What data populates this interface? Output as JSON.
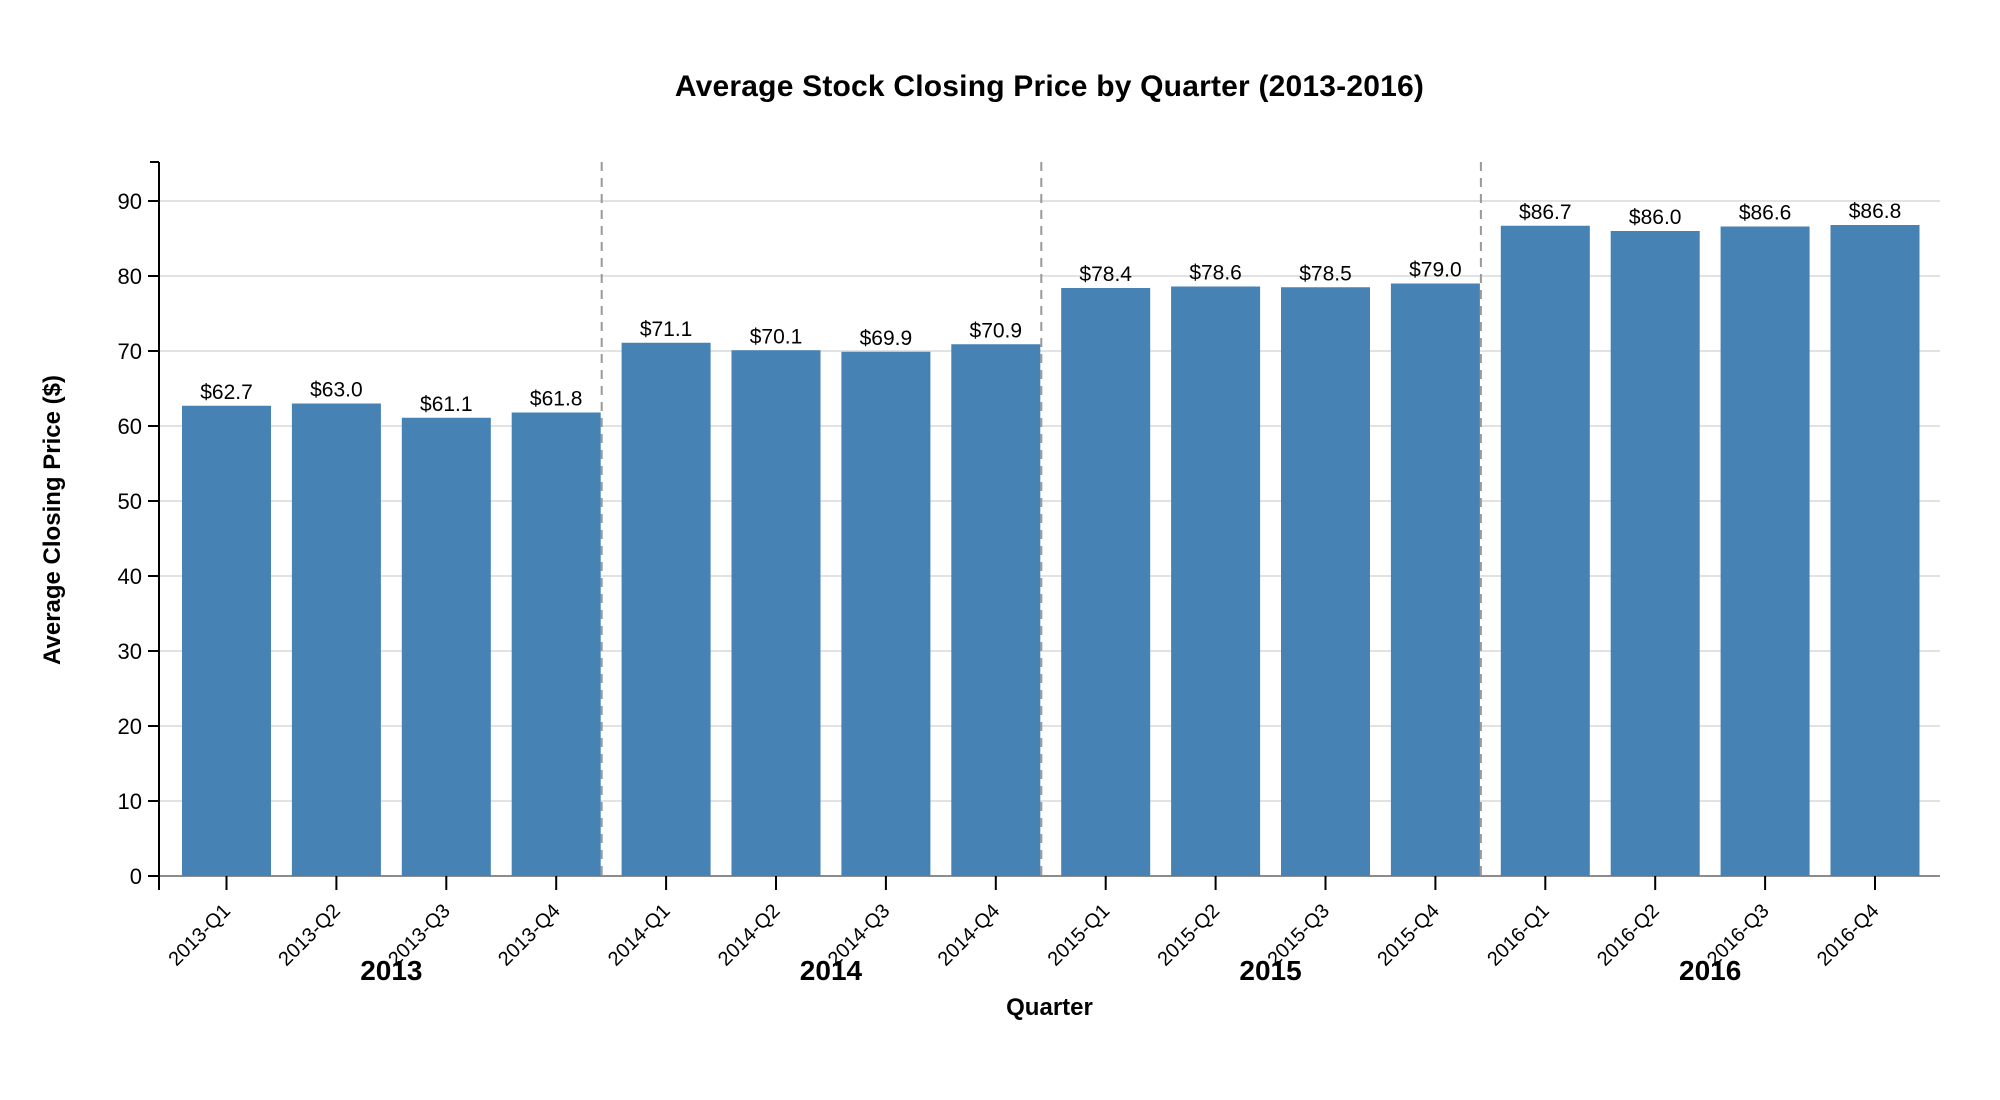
{
  "page": {
    "background": "#ffffff"
  },
  "chart_data": {
    "type": "bar",
    "title": "Average Stock Closing Price by Quarter (2013-2016)",
    "xlabel": "Quarter",
    "ylabel": "Average Closing Price ($)",
    "categories": [
      "2013-Q1",
      "2013-Q2",
      "2013-Q3",
      "2013-Q4",
      "2014-Q1",
      "2014-Q2",
      "2014-Q3",
      "2014-Q4",
      "2015-Q1",
      "2015-Q2",
      "2015-Q3",
      "2015-Q4",
      "2016-Q1",
      "2016-Q2",
      "2016-Q3",
      "2016-Q4"
    ],
    "values": [
      62.7,
      63.0,
      61.1,
      61.8,
      71.1,
      70.1,
      69.9,
      70.9,
      78.4,
      78.6,
      78.5,
      79.0,
      86.7,
      86.0,
      86.6,
      86.8
    ],
    "bar_labels": [
      "$62.7",
      "$63.0",
      "$61.1",
      "$61.8",
      "$71.1",
      "$70.1",
      "$69.9",
      "$70.9",
      "$78.4",
      "$78.6",
      "$78.5",
      "$79.0",
      "$86.7",
      "$86.0",
      "$86.6",
      "$86.8"
    ],
    "years": [
      "2013",
      "2014",
      "2015",
      "2016"
    ],
    "quarters_per_year": 4,
    "yticks": [
      0,
      10,
      20,
      30,
      40,
      50,
      60,
      70,
      80,
      90
    ],
    "ylim": [
      0,
      95.2
    ],
    "grid": true,
    "year_separators": "dashed",
    "legend": "none",
    "colors": {
      "bar": "#4682B4",
      "grid": "#e2e2e2",
      "baseline": "#8c8c8c",
      "separator": "#999999",
      "axis": "#000000",
      "text": "#000000"
    }
  }
}
